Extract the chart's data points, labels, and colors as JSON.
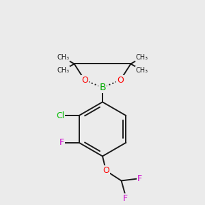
{
  "bg_color": "#ebebeb",
  "bond_color": "#1a1a1a",
  "bond_width": 1.4,
  "atom_colors": {
    "B": "#00aa00",
    "O": "#ff0000",
    "Cl": "#00bb00",
    "F": "#cc00cc",
    "C": "#1a1a1a"
  },
  "figsize": [
    3.0,
    3.0
  ],
  "dpi": 100,
  "xlim": [
    -3.5,
    3.5
  ],
  "ylim": [
    -4.2,
    4.2
  ]
}
